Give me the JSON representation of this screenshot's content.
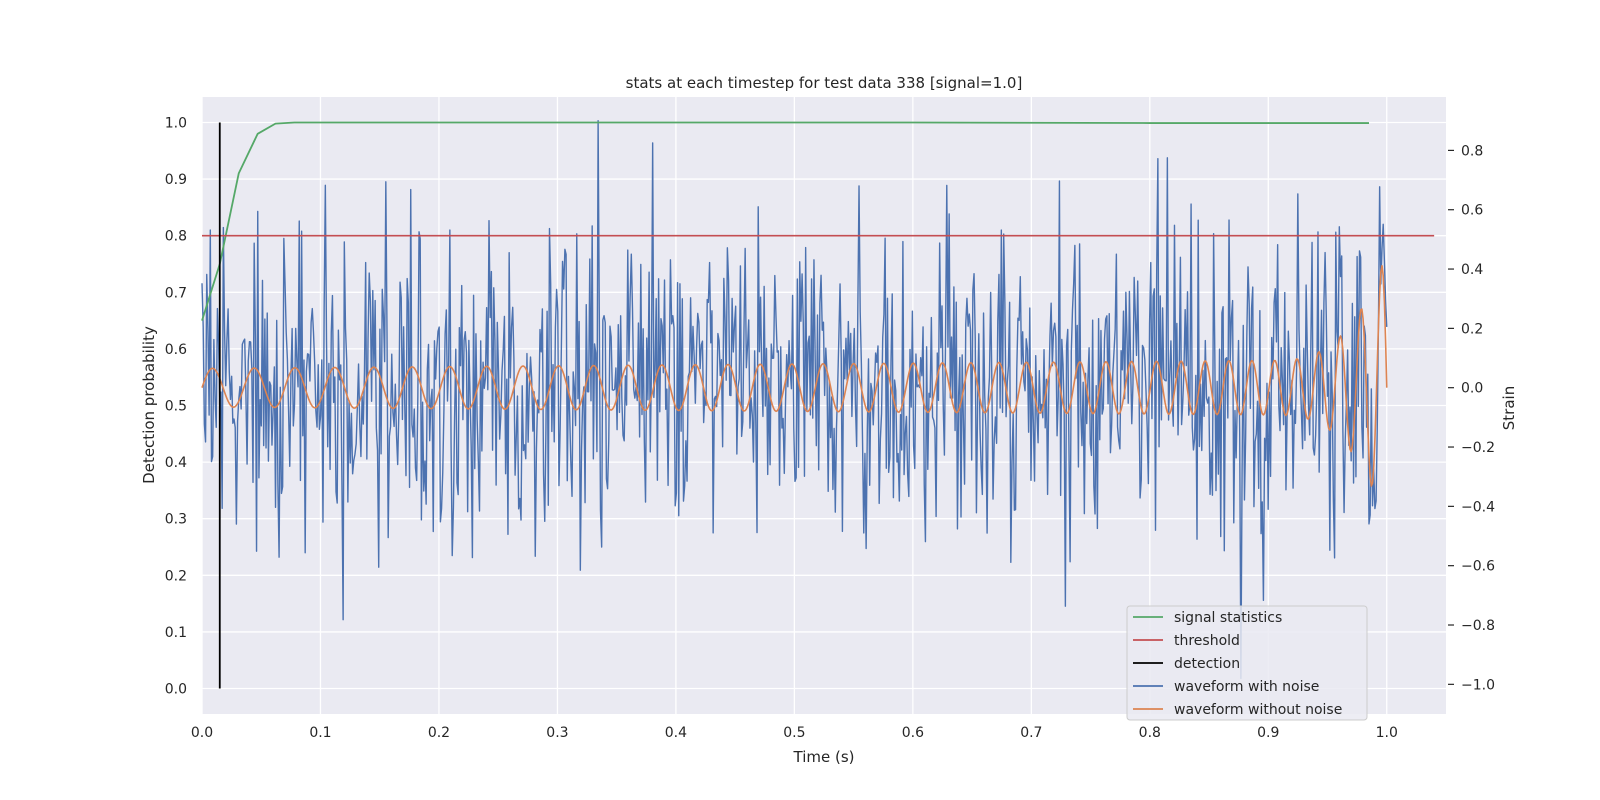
{
  "chart_data": {
    "type": "line",
    "title": "stats at each timestep for test data 338 [signal=1.0]",
    "xlabel": "Time (s)",
    "ylabel": "Detection probability",
    "y2label": "Strain",
    "xlim": [
      0.0,
      1.05
    ],
    "ylim": [
      -0.045,
      1.045
    ],
    "y2lim": [
      -1.1,
      0.98
    ],
    "xticks": [
      "0.0",
      "0.1",
      "0.2",
      "0.3",
      "0.4",
      "0.5",
      "0.6",
      "0.7",
      "0.8",
      "0.9",
      "1.0"
    ],
    "yticks": [
      "0.0",
      "0.1",
      "0.2",
      "0.3",
      "0.4",
      "0.5",
      "0.6",
      "0.7",
      "0.8",
      "0.9",
      "1.0"
    ],
    "y2ticks": [
      "−1.0",
      "−0.8",
      "−0.6",
      "−0.4",
      "−0.2",
      "0.0",
      "0.2",
      "0.4",
      "0.6",
      "0.8"
    ],
    "grid": true,
    "legend_position": "lower-right",
    "colors": {
      "background": "#eaeaf2",
      "grid": "#ffffff",
      "signal_statistics": "#55a868",
      "threshold": "#c44e52",
      "detection": "#000000",
      "waveform_with_noise": "#4c72b0",
      "waveform_without_noise": "#dd8452"
    },
    "series": [
      {
        "name": "signal statistics",
        "axis": "left",
        "x": [
          0.0,
          0.015,
          0.031,
          0.047,
          0.062,
          0.078,
          0.1,
          0.2,
          0.4,
          0.6,
          0.8,
          0.985
        ],
        "y": [
          0.65,
          0.75,
          0.91,
          0.98,
          0.998,
          1.0,
          1.0,
          1.0,
          1.0,
          1.0,
          0.999,
          0.999
        ]
      },
      {
        "name": "threshold",
        "axis": "left",
        "x": [
          0.0,
          1.04
        ],
        "y": [
          0.8,
          0.8
        ]
      },
      {
        "name": "detection",
        "axis": "left",
        "x": [
          0.015,
          0.015
        ],
        "y": [
          0.0,
          1.0
        ]
      },
      {
        "name": "waveform with noise",
        "axis": "right",
        "generated": "noisy",
        "summary": {
          "n_points": 1000,
          "x_range": [
            0.0,
            1.0
          ],
          "y_range": [
            -0.98,
            0.9
          ]
        }
      },
      {
        "name": "waveform without noise",
        "axis": "right",
        "generated": "chirp",
        "summary": {
          "n_points": 1000,
          "x_range": [
            0.0,
            1.0
          ],
          "y_range": [
            -0.5,
            0.33
          ]
        }
      }
    ]
  }
}
